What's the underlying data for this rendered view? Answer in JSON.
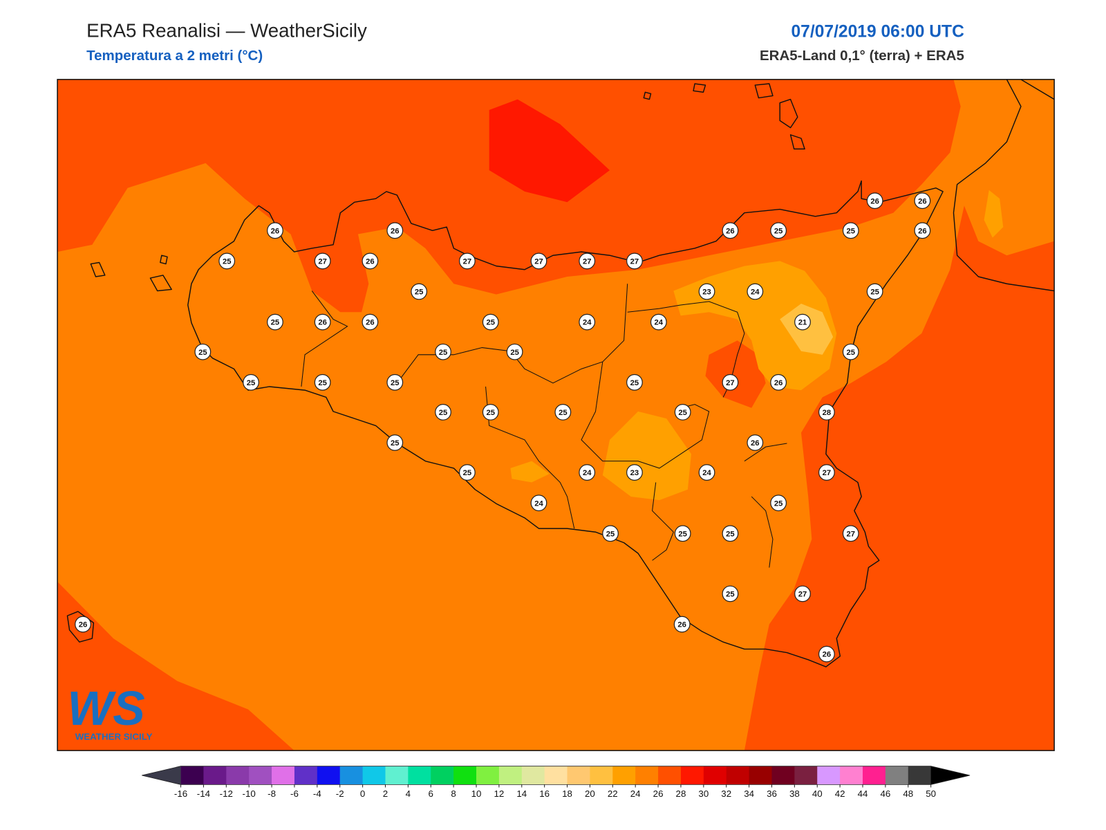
{
  "header": {
    "title": "ERA5 Reanalisi — WeatherSicily",
    "subtitle": "Temperatura a 2 metri (°C)",
    "datetime": "07/07/2019 06:00 UTC",
    "source": "ERA5-Land 0,1° (terra) + ERA5"
  },
  "map": {
    "station_values": [
      26,
      26,
      25,
      27,
      26,
      27,
      27,
      27,
      27,
      25,
      25,
      26,
      26,
      25,
      24,
      24,
      25,
      25,
      25,
      25,
      25,
      25,
      25,
      25,
      25,
      25,
      25,
      25,
      24,
      24,
      23,
      24,
      25,
      25,
      25,
      25,
      26,
      26,
      26,
      26,
      26,
      25,
      25,
      26,
      23,
      24,
      25,
      21,
      25,
      27,
      26,
      25,
      28,
      26,
      27,
      25,
      27,
      27,
      26
    ]
  },
  "colorbar": {
    "ticks": [
      -16,
      -14,
      -12,
      -10,
      -8,
      -6,
      -4,
      -2,
      0,
      2,
      4,
      6,
      8,
      10,
      12,
      14,
      16,
      18,
      20,
      22,
      24,
      26,
      28,
      30,
      32,
      34,
      36,
      38,
      40,
      42,
      44,
      46,
      48,
      50
    ],
    "colors": [
      "#3c0050",
      "#6a1a8a",
      "#8a3aaa",
      "#a050c0",
      "#e070e8",
      "#6030c8",
      "#1010f0",
      "#1890e0",
      "#10c8e8",
      "#60f0d0",
      "#00e0a0",
      "#00d060",
      "#10e010",
      "#80f040",
      "#c0f080",
      "#e0e8a0",
      "#ffe0a0",
      "#ffc870",
      "#ffc040",
      "#ffa000",
      "#ff8000",
      "#ff5000",
      "#ff1800",
      "#e00000",
      "#c00000",
      "#980000",
      "#700020",
      "#7a2040",
      "#d898ff",
      "#ff80d0",
      "#ff2090",
      "#808080",
      "#383838"
    ],
    "under_color": "#3a3a4a",
    "over_color": "#000000"
  },
  "logo": {
    "mark": "WS",
    "name": "WEATHER SICILY"
  }
}
